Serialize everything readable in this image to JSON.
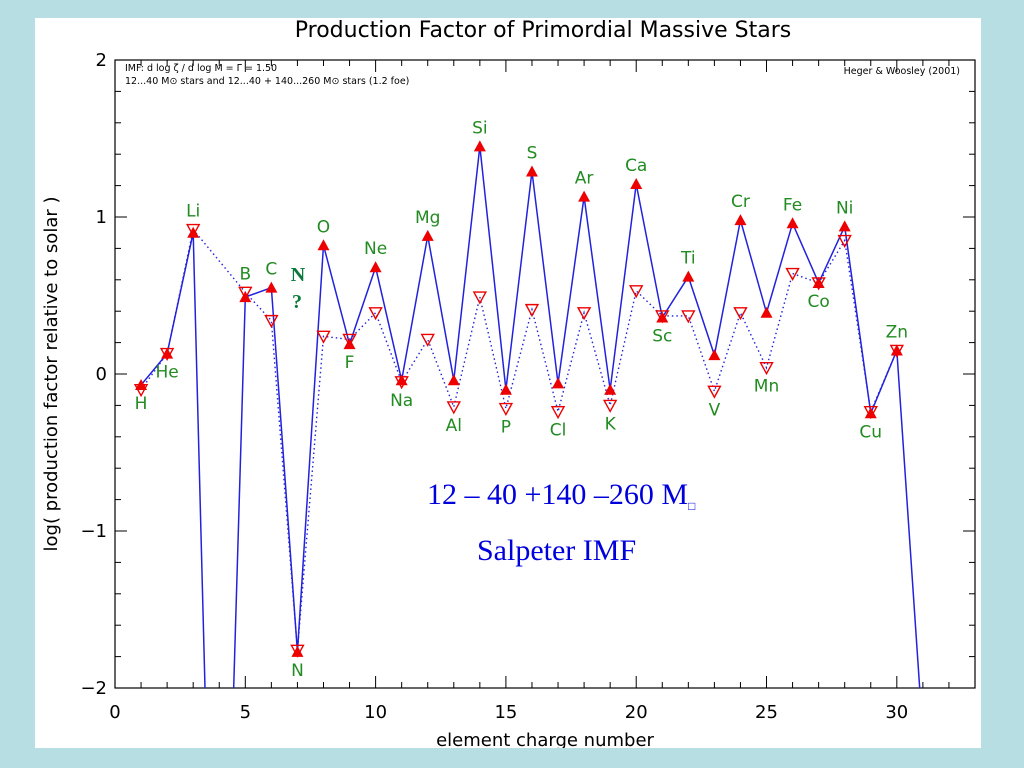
{
  "colors": {
    "background": "#b7dee2",
    "series_solid": "#2222dd",
    "series_dotted": "#2222dd",
    "marker_solid": "#ee0000",
    "marker_hollow": "#ee0000",
    "element_label": "#228b22",
    "n_note": "#0a7a3c",
    "overlay_text": "#0000dd"
  },
  "chart_data": {
    "type": "line",
    "title": "Production Factor of Primordial Massive Stars",
    "xlabel": "element charge number",
    "ylabel": "log( production factor relative to solar )",
    "xlim": [
      0,
      33
    ],
    "ylim": [
      -2,
      2
    ],
    "x_ticks": [
      0,
      5,
      10,
      15,
      20,
      25,
      30
    ],
    "y_ticks": [
      -2,
      -1,
      0,
      1,
      2
    ],
    "x_tick_labels": [
      "0",
      "5",
      "10",
      "15",
      "20",
      "25",
      "30"
    ],
    "y_tick_labels": [
      "−2",
      "−1",
      "0",
      "1",
      "2"
    ],
    "grid": false,
    "legend_text": {
      "line1": "IMF: d log ζ / d log M = Γ =  1.50",
      "line2": "12...40 M⊙ stars and 12...40 + 140...260 M⊙ stars (1.2 foe)",
      "credit": "Heger & Woosley (2001)"
    },
    "series": [
      {
        "marker": "filled-triangle-up",
        "line": "solid",
        "points": [
          [
            1,
            -0.07
          ],
          [
            2,
            0.13
          ],
          [
            3,
            0.9
          ],
          [
            3.5,
            -2.3
          ],
          [
            4.5,
            -2.3
          ],
          [
            5,
            0.49
          ],
          [
            6,
            0.55
          ],
          [
            7,
            -1.77
          ],
          [
            8,
            0.82
          ],
          [
            9,
            0.19
          ],
          [
            10,
            0.68
          ],
          [
            11,
            -0.04
          ],
          [
            12,
            0.88
          ],
          [
            13,
            -0.04
          ],
          [
            14,
            1.45
          ],
          [
            15,
            -0.1
          ],
          [
            16,
            1.29
          ],
          [
            17,
            -0.06
          ],
          [
            18,
            1.13
          ],
          [
            19,
            -0.1
          ],
          [
            20,
            1.21
          ],
          [
            21,
            0.36
          ],
          [
            22,
            0.62
          ],
          [
            23,
            0.12
          ],
          [
            24,
            0.98
          ],
          [
            25,
            0.39
          ],
          [
            26,
            0.96
          ],
          [
            27,
            0.58
          ],
          [
            28,
            0.94
          ],
          [
            29,
            -0.25
          ],
          [
            30,
            0.15
          ],
          [
            31,
            -2.3
          ]
        ],
        "marked_x": [
          1,
          2,
          3,
          5,
          6,
          7,
          8,
          9,
          10,
          11,
          12,
          13,
          14,
          15,
          16,
          17,
          18,
          19,
          20,
          21,
          22,
          23,
          24,
          25,
          26,
          27,
          28,
          29,
          30
        ]
      },
      {
        "marker": "hollow-triangle-down",
        "line": "dotted",
        "points": [
          [
            1,
            -0.1
          ],
          [
            2,
            0.13
          ],
          [
            3,
            0.92
          ],
          [
            5,
            0.52
          ],
          [
            6,
            0.34
          ],
          [
            7,
            -1.76
          ],
          [
            8,
            0.24
          ],
          [
            9,
            0.22
          ],
          [
            10,
            0.39
          ],
          [
            11,
            -0.05
          ],
          [
            12,
            0.22
          ],
          [
            13,
            -0.21
          ],
          [
            14,
            0.49
          ],
          [
            15,
            -0.22
          ],
          [
            16,
            0.41
          ],
          [
            17,
            -0.24
          ],
          [
            18,
            0.39
          ],
          [
            19,
            -0.2
          ],
          [
            20,
            0.53
          ],
          [
            21,
            0.37
          ],
          [
            22,
            0.37
          ],
          [
            23,
            -0.11
          ],
          [
            24,
            0.39
          ],
          [
            25,
            0.04
          ],
          [
            26,
            0.64
          ],
          [
            27,
            0.58
          ],
          [
            28,
            0.85
          ],
          [
            29,
            -0.24
          ],
          [
            30,
            0.15
          ]
        ]
      }
    ],
    "element_labels": [
      {
        "text": "H",
        "x": 1,
        "y": -0.07,
        "pos": "below"
      },
      {
        "text": "He",
        "x": 2,
        "y": 0.13,
        "pos": "below"
      },
      {
        "text": "Li",
        "x": 3,
        "y": 0.92,
        "pos": "above"
      },
      {
        "text": "B",
        "x": 5,
        "y": 0.52,
        "pos": "above"
      },
      {
        "text": "C",
        "x": 6,
        "y": 0.55,
        "pos": "above"
      },
      {
        "text": "N",
        "x": 7,
        "y": -1.77,
        "pos": "below"
      },
      {
        "text": "O",
        "x": 8,
        "y": 0.82,
        "pos": "above"
      },
      {
        "text": "F",
        "x": 9,
        "y": 0.19,
        "pos": "below"
      },
      {
        "text": "Ne",
        "x": 10,
        "y": 0.68,
        "pos": "above"
      },
      {
        "text": "Na",
        "x": 11,
        "y": -0.05,
        "pos": "below"
      },
      {
        "text": "Mg",
        "x": 12,
        "y": 0.88,
        "pos": "above"
      },
      {
        "text": "Al",
        "x": 13,
        "y": -0.21,
        "pos": "below"
      },
      {
        "text": "Si",
        "x": 14,
        "y": 1.45,
        "pos": "above"
      },
      {
        "text": "P",
        "x": 15,
        "y": -0.22,
        "pos": "below"
      },
      {
        "text": "S",
        "x": 16,
        "y": 1.29,
        "pos": "above"
      },
      {
        "text": "Cl",
        "x": 17,
        "y": -0.24,
        "pos": "below"
      },
      {
        "text": "Ar",
        "x": 18,
        "y": 1.13,
        "pos": "above"
      },
      {
        "text": "K",
        "x": 19,
        "y": -0.2,
        "pos": "below"
      },
      {
        "text": "Ca",
        "x": 20,
        "y": 1.21,
        "pos": "above"
      },
      {
        "text": "Sc",
        "x": 21,
        "y": 0.36,
        "pos": "below"
      },
      {
        "text": "Ti",
        "x": 22,
        "y": 0.62,
        "pos": "above"
      },
      {
        "text": "V",
        "x": 23,
        "y": -0.11,
        "pos": "below"
      },
      {
        "text": "Cr",
        "x": 24,
        "y": 0.98,
        "pos": "above"
      },
      {
        "text": "Mn",
        "x": 25,
        "y": 0.04,
        "pos": "below"
      },
      {
        "text": "Fe",
        "x": 26,
        "y": 0.96,
        "pos": "above"
      },
      {
        "text": "Co",
        "x": 27,
        "y": 0.58,
        "pos": "below"
      },
      {
        "text": "Ni",
        "x": 28,
        "y": 0.94,
        "pos": "above"
      },
      {
        "text": "Cu",
        "x": 29,
        "y": -0.25,
        "pos": "below"
      },
      {
        "text": "Zn",
        "x": 30,
        "y": 0.15,
        "pos": "above"
      }
    ],
    "annotations": {
      "n_note": [
        "N",
        "?"
      ],
      "mass_range": "12 – 40 +140  –260 M",
      "mass_symbol_glyph": "□",
      "imf_label": "Salpeter IMF"
    }
  }
}
